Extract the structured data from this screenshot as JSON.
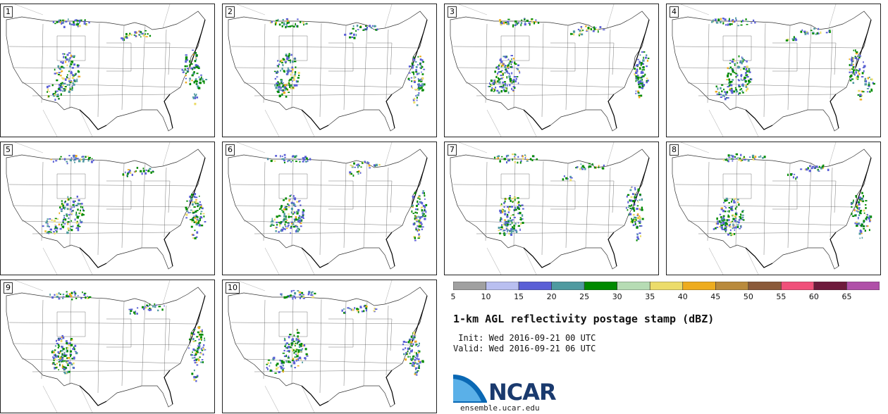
{
  "members": [
    {
      "label": "1"
    },
    {
      "label": "2"
    },
    {
      "label": "3"
    },
    {
      "label": "4"
    },
    {
      "label": "5"
    },
    {
      "label": "6"
    },
    {
      "label": "7"
    },
    {
      "label": "8"
    },
    {
      "label": "9"
    },
    {
      "label": "10"
    }
  ],
  "colorbar": {
    "colors": [
      "#a0a0a0",
      "#b9bff0",
      "#5a5fd6",
      "#4f9aa0",
      "#008a00",
      "#b6dcb4",
      "#ecdc6a",
      "#eeac1e",
      "#b98a3c",
      "#8b5a3a",
      "#f0507a",
      "#6e1a3c",
      "#b050a8"
    ],
    "ticks": [
      "5",
      "10",
      "15",
      "20",
      "25",
      "30",
      "35",
      "40",
      "45",
      "50",
      "55",
      "60",
      "65"
    ]
  },
  "title": "1-km AGL reflectivity postage stamp (dBZ)",
  "init": " Init: Wed 2016-09-21 00 UTC",
  "valid": "Valid: Wed 2016-09-21 06 UTC",
  "logo": {
    "name": "NCAR",
    "url": "ensemble.ucar.edu"
  }
}
